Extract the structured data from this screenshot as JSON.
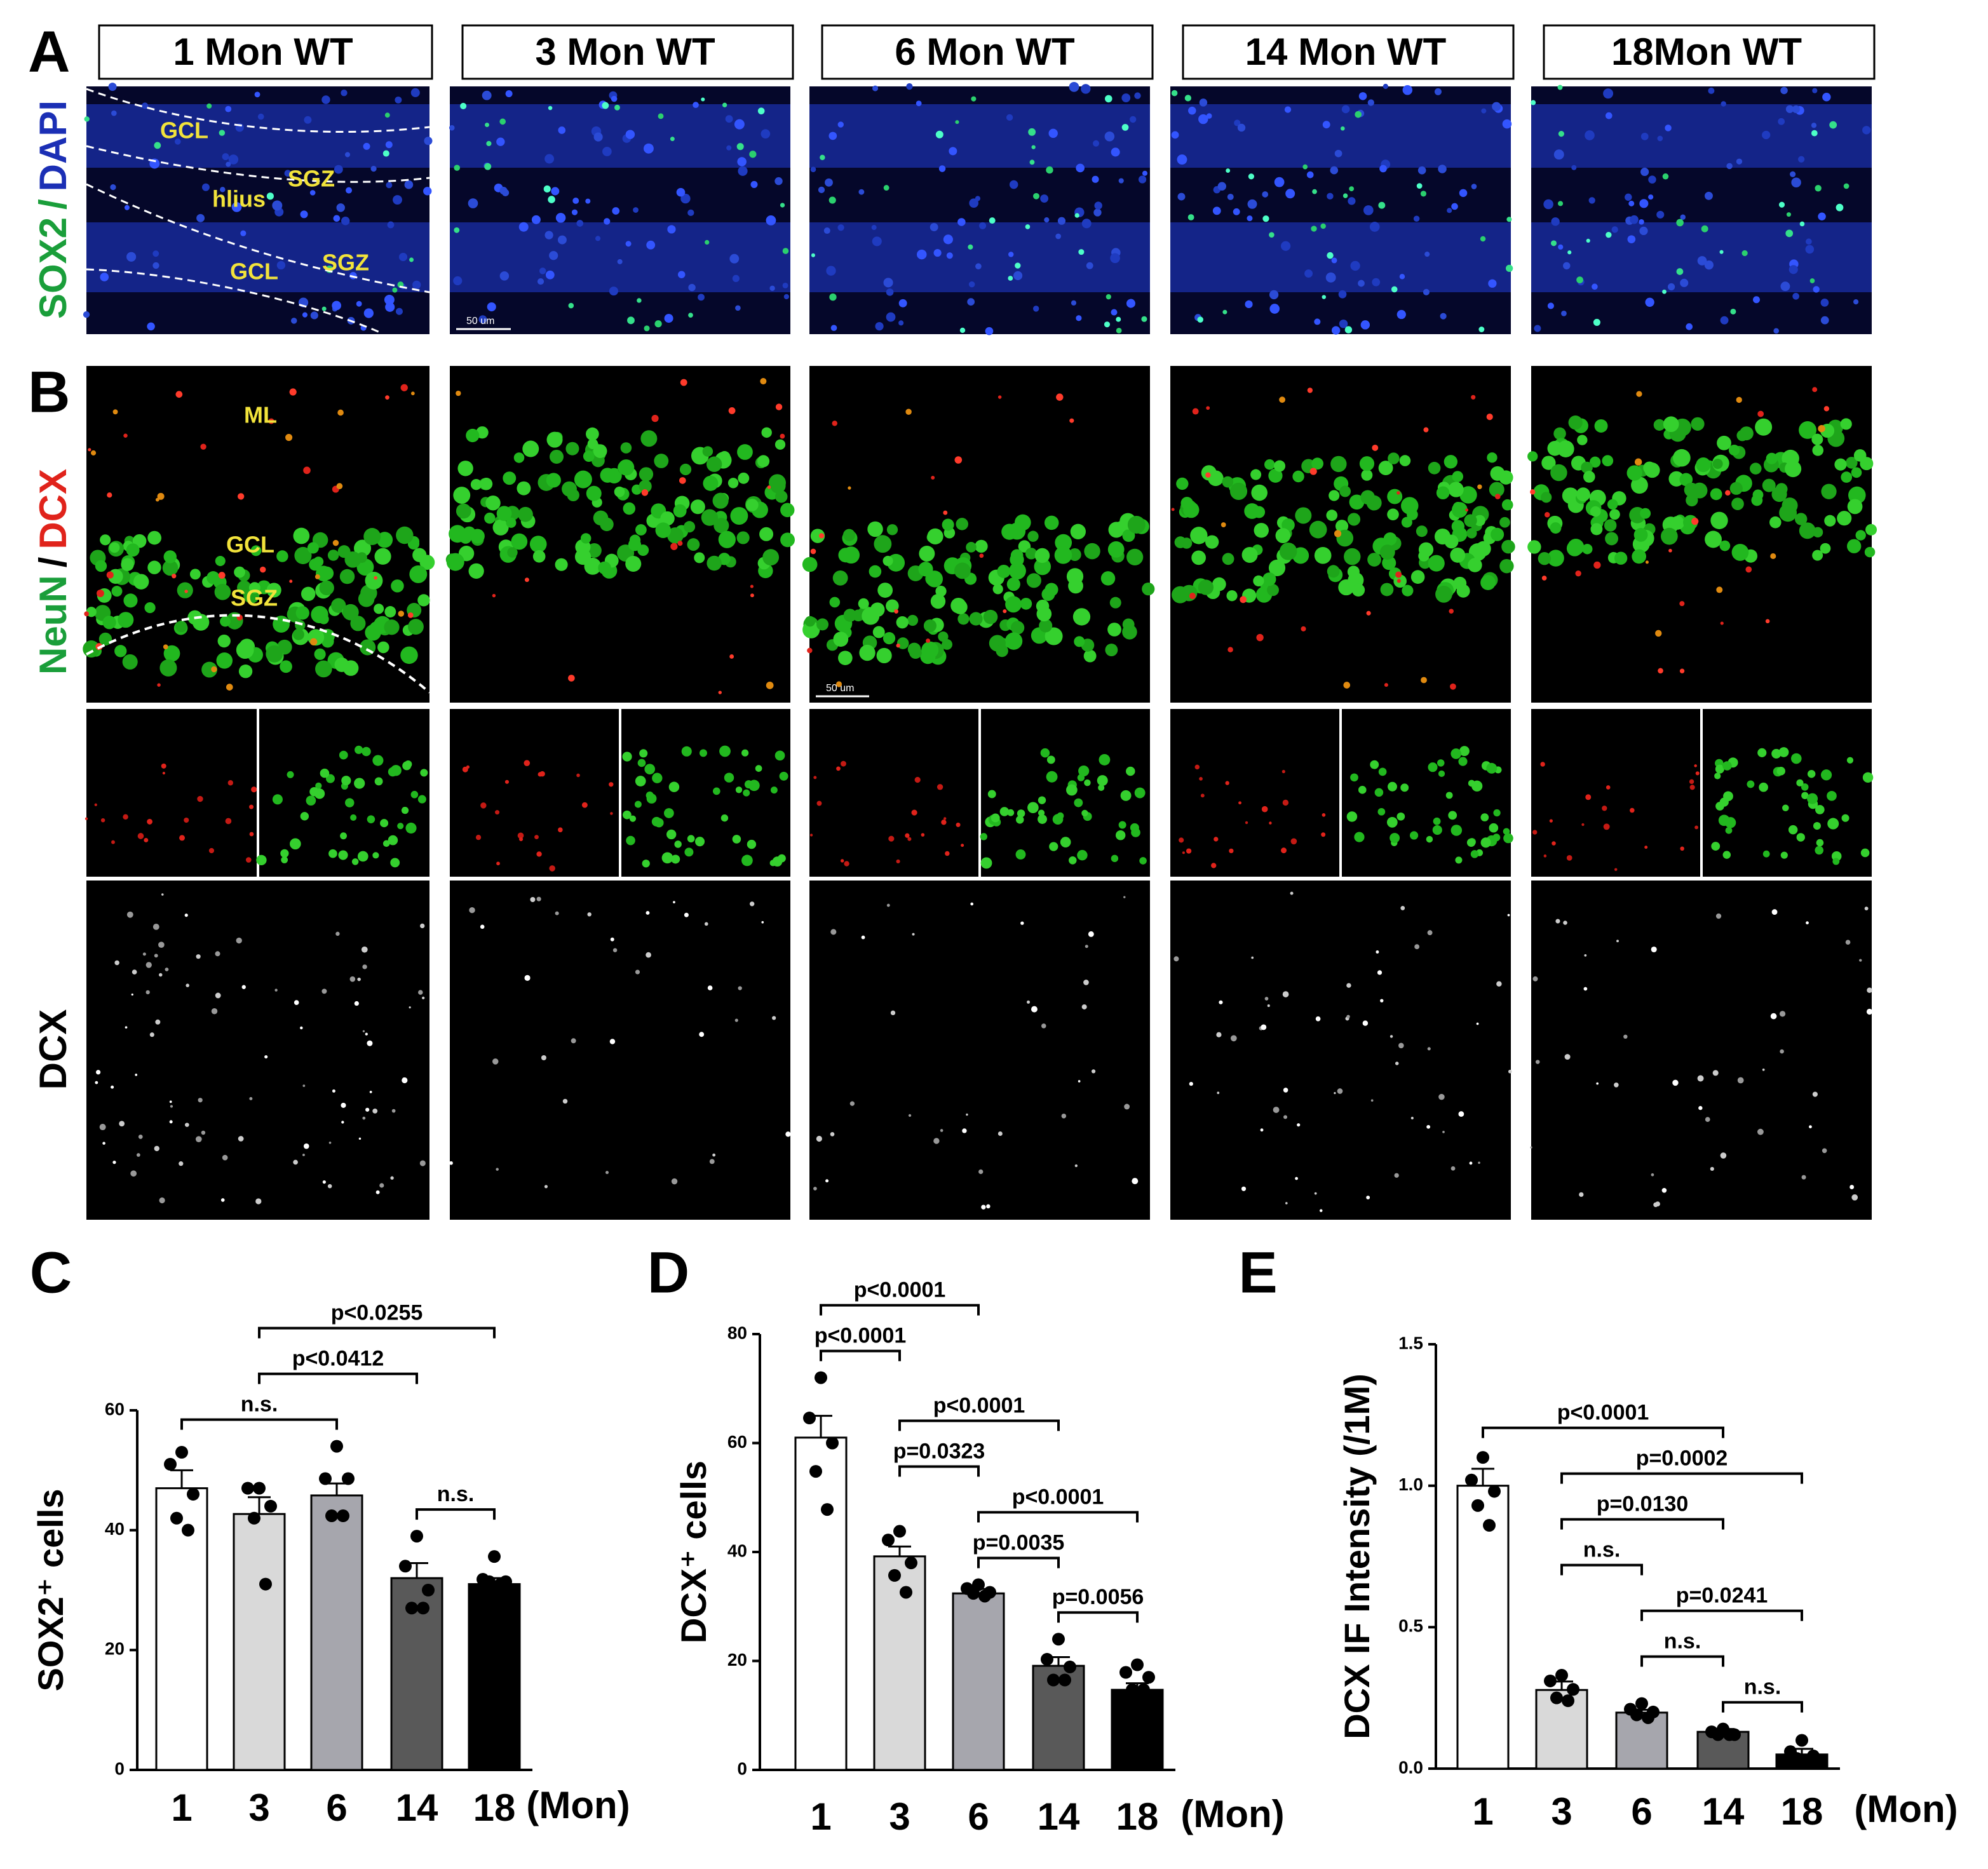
{
  "figure": {
    "panel_labels": [
      "A",
      "B"
    ],
    "columns": [
      "1 Mon WT",
      "3 Mon WT",
      "6 Mon WT",
      "14 Mon WT",
      "18Mon WT"
    ],
    "row_a_label": [
      {
        "text": "SOX2",
        "color": "#1a9e3a"
      },
      {
        "text": "/",
        "color": "#1a9e3a"
      },
      {
        "text": "DAPI",
        "color": "#1b2fb5"
      }
    ],
    "row_b_label": [
      {
        "text": "NeuN",
        "color": "#1a9e3a"
      },
      {
        "text": "/",
        "color": "#000000"
      },
      {
        "text": "DCX",
        "color": "#e0231b"
      }
    ],
    "row_dcx_label": "DCX",
    "a_annotations": [
      "GCL",
      "SGZ",
      "hlius",
      "GCL",
      "SGZ"
    ],
    "b_annotations": [
      "ML",
      "GCL",
      "SGZ"
    ],
    "scale_bar": "50 um"
  },
  "chart_data": [
    {
      "type": "bar",
      "label": "C",
      "ylabel": "SOX2⁺ cells",
      "xlabel": "(Mon)",
      "categories": [
        "1",
        "3",
        "6",
        "14",
        "18"
      ],
      "values": [
        47,
        42.7,
        45.8,
        32,
        31
      ],
      "errors": [
        3,
        2.8,
        2,
        2.5,
        1
      ],
      "points": [
        [
          53,
          51,
          46,
          42,
          40
        ],
        [
          47,
          47,
          44,
          42,
          31
        ],
        [
          54,
          48.6,
          48.6,
          42.4,
          42.4
        ],
        [
          39,
          34,
          30,
          27,
          27
        ],
        [
          35.6,
          31.8,
          31.4,
          31.4,
          31
        ]
      ],
      "colors": [
        "#ffffff",
        "#d9d9d9",
        "#a6a6ad",
        "#595959",
        "#000000"
      ],
      "ylim": [
        0,
        60
      ],
      "yticks": [
        0,
        20,
        40,
        60
      ],
      "comparisons": [
        {
          "between": [
            "14",
            "18"
          ],
          "label": "n.s."
        },
        {
          "between": [
            "1",
            "6"
          ],
          "label": "n.s."
        },
        {
          "between": [
            "3",
            "14"
          ],
          "label": "p<0.0412"
        },
        {
          "between": [
            "3",
            "18"
          ],
          "label": "p<0.0255"
        }
      ]
    },
    {
      "type": "bar",
      "label": "D",
      "ylabel": "DCX⁺ cells",
      "xlabel": "(Mon)",
      "categories": [
        "1",
        "3",
        "6",
        "14",
        "18"
      ],
      "values": [
        61,
        39.2,
        32.4,
        19.1,
        14.7
      ],
      "errors": [
        4,
        1.8,
        0.8,
        1.6,
        1.2
      ],
      "points": [
        [
          72,
          64.6,
          60,
          54.8,
          47.8
        ],
        [
          43.8,
          42.2,
          38,
          35.7,
          32.6
        ],
        [
          34,
          33.3,
          32.6,
          32.4,
          31.9
        ],
        [
          24,
          20.3,
          18.9,
          16.5,
          16.5
        ],
        [
          19.3,
          17.9,
          17,
          14.7,
          14.7
        ]
      ],
      "colors": [
        "#ffffff",
        "#d9d9d9",
        "#a6a6ad",
        "#595959",
        "#000000"
      ],
      "ylim": [
        0,
        80
      ],
      "yticks": [
        0,
        20,
        40,
        60,
        80
      ],
      "comparisons": [
        {
          "between": [
            "14",
            "18"
          ],
          "label": "p=0.0056"
        },
        {
          "between": [
            "6",
            "14"
          ],
          "label": "p=0.0035"
        },
        {
          "between": [
            "6",
            "18"
          ],
          "label": "p<0.0001"
        },
        {
          "between": [
            "3",
            "6"
          ],
          "label": "p=0.0323"
        },
        {
          "between": [
            "3",
            "14"
          ],
          "label": "p<0.0001"
        },
        {
          "between": [
            "1",
            "3"
          ],
          "label": "p<0.0001"
        },
        {
          "between": [
            "1",
            "6"
          ],
          "label": "p<0.0001"
        }
      ]
    },
    {
      "type": "bar",
      "label": "E",
      "ylabel": "DCX IF Intensity (/1M)",
      "xlabel": "(Mon)",
      "categories": [
        "1",
        "3",
        "6",
        "14",
        "18"
      ],
      "values": [
        1.0,
        0.278,
        0.198,
        0.13,
        0.05
      ],
      "errors": [
        0.06,
        0.03,
        0.01,
        0.01,
        0.02
      ],
      "points": [
        [
          1.1,
          1.02,
          0.98,
          0.93,
          0.86
        ],
        [
          0.33,
          0.31,
          0.28,
          0.25,
          0.24
        ],
        [
          0.23,
          0.21,
          0.2,
          0.19,
          0.18
        ],
        [
          0.14,
          0.13,
          0.12,
          0.12,
          0.12
        ],
        [
          0.1,
          0.06,
          0.045,
          0.036,
          0.027
        ]
      ],
      "colors": [
        "#ffffff",
        "#d9d9d9",
        "#a6a6ad",
        "#595959",
        "#000000"
      ],
      "ylim": [
        0,
        1.5
      ],
      "yticks": [
        {
          "value": 0,
          "label": "0.0"
        },
        0.5,
        {
          "value": 1,
          "label": "1.0"
        },
        1.5
      ],
      "comparisons": [
        {
          "between": [
            "14",
            "18"
          ],
          "label": "n.s."
        },
        {
          "between": [
            "6",
            "14"
          ],
          "label": "n.s."
        },
        {
          "between": [
            "6",
            "18"
          ],
          "label": "p=0.0241"
        },
        {
          "between": [
            "3",
            "6"
          ],
          "label": "n.s."
        },
        {
          "between": [
            "3",
            "14"
          ],
          "label": "p=0.0130"
        },
        {
          "between": [
            "3",
            "18"
          ],
          "label": "p=0.0002"
        },
        {
          "between": [
            "1",
            "14"
          ],
          "label": "p<0.0001"
        }
      ]
    }
  ]
}
